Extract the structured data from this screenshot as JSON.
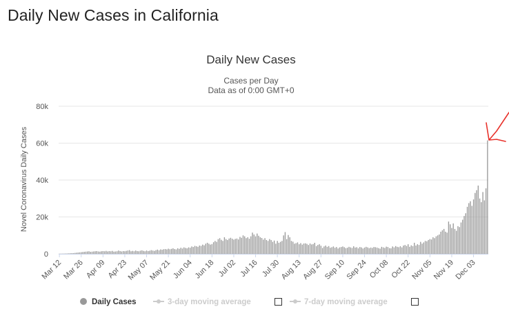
{
  "page": {
    "title": "Daily New Cases in California"
  },
  "chart_data": {
    "type": "bar",
    "title": "Daily New Cases",
    "subtitle_lines": [
      "Cases per Day",
      "Data as of 0:00 GMT+0"
    ],
    "xlabel": "",
    "ylabel": "Novel Coronavirus Daily Cases",
    "ylim": [
      0,
      80000
    ],
    "yticks": [
      0,
      20000,
      40000,
      60000,
      80000
    ],
    "ytick_labels": [
      "0",
      "20k",
      "40k",
      "60k",
      "80k"
    ],
    "x_start": "2020-03-12",
    "x_tick_labels": [
      "Mar 12",
      "Mar 26",
      "Apr 09",
      "Apr 23",
      "May 07",
      "May 21",
      "Jun 04",
      "Jun 18",
      "Jul 02",
      "Jul 16",
      "Jul 30",
      "Aug 13",
      "Aug 27",
      "Sep 10",
      "Sep 24",
      "Oct 08",
      "Oct 22",
      "Nov 05",
      "Nov 19",
      "Dec 03"
    ],
    "grid": true,
    "legend_position": "bottom",
    "bar_color": "#999999",
    "series": [
      {
        "name": "Daily Cases",
        "values": [
          50,
          60,
          80,
          100,
          150,
          200,
          250,
          300,
          350,
          400,
          500,
          600,
          700,
          800,
          900,
          1000,
          1100,
          1200,
          1300,
          1400,
          1100,
          1200,
          1300,
          1400,
          1500,
          1300,
          1200,
          1400,
          1500,
          1400,
          1600,
          1300,
          1500,
          1400,
          1600,
          1200,
          1300,
          1400,
          1800,
          1500,
          1300,
          1500,
          1400,
          1600,
          1800,
          2000,
          1400,
          1600,
          1400,
          1800,
          1500,
          1400,
          1700,
          1900,
          1600,
          1400,
          1800,
          1500,
          1700,
          2000,
          1800,
          1600,
          2000,
          2300,
          1900,
          2400,
          2200,
          2500,
          2600,
          2400,
          2800,
          2500,
          2700,
          3000,
          2600,
          2400,
          3000,
          2700,
          3300,
          2900,
          3500,
          3200,
          3000,
          3500,
          3300,
          4000,
          3700,
          4300,
          4100,
          3800,
          4500,
          4300,
          5000,
          4600,
          5500,
          6000,
          5500,
          5000,
          5300,
          6300,
          7000,
          6500,
          8000,
          8500,
          7600,
          7000,
          9000,
          8000,
          7500,
          8300,
          8700,
          8200,
          7700,
          8100,
          8300,
          7800,
          9200,
          8700,
          10000,
          9500,
          8500,
          9000,
          8200,
          9500,
          11500,
          10500,
          9500,
          11000,
          9800,
          9000,
          8600,
          7700,
          8500,
          7500,
          7000,
          8000,
          7500,
          6500,
          7200,
          5500,
          7000,
          6000,
          6500,
          7000,
          10000,
          11800,
          8000,
          10200,
          9000,
          7000,
          6600,
          5500,
          5800,
          6200,
          5200,
          5800,
          5000,
          5600,
          5700,
          5400,
          4800,
          5600,
          5100,
          5300,
          6000,
          4200,
          4800,
          5200,
          4400,
          3200,
          4000,
          4500,
          3800,
          4200,
          3300,
          3600,
          4000,
          3300,
          3700,
          2900,
          3500,
          3700,
          4000,
          3600,
          3100,
          3300,
          3800,
          3500,
          3200,
          4100,
          3400,
          3600,
          3000,
          3700,
          3500,
          2900,
          3400,
          3800,
          3500,
          3100,
          3400,
          3200,
          3700,
          3600,
          3400,
          3100,
          2800,
          3800,
          3500,
          3200,
          3900,
          3700,
          3100,
          3000,
          4000,
          3500,
          4200,
          3800,
          3600,
          4100,
          3500,
          4500,
          4800,
          4300,
          5200,
          3800,
          4600,
          4200,
          6000,
          4500,
          5200,
          4800,
          6500,
          5500,
          6200,
          7000,
          6800,
          7500,
          8000,
          7800,
          9000,
          8500,
          9500,
          10000,
          10500,
          12000,
          12800,
          13500,
          12000,
          11500,
          17500,
          16000,
          14000,
          16500,
          13500,
          12500,
          15000,
          14500,
          17000,
          18500,
          20500,
          22000,
          25500,
          27500,
          28500,
          26000,
          29500,
          33000,
          34500,
          37000,
          30000,
          28000,
          33500,
          29000,
          35500,
          61500
        ]
      }
    ],
    "legend_items": [
      {
        "label": "Daily Cases",
        "active": true
      },
      {
        "label": "3-day moving average",
        "active": false
      },
      {
        "label": "7-day moving average",
        "active": false
      }
    ]
  },
  "colors": {
    "annotation": "#e8312a",
    "grid": "#e6e6e6",
    "text": "#333333",
    "muted": "#cccccc"
  }
}
